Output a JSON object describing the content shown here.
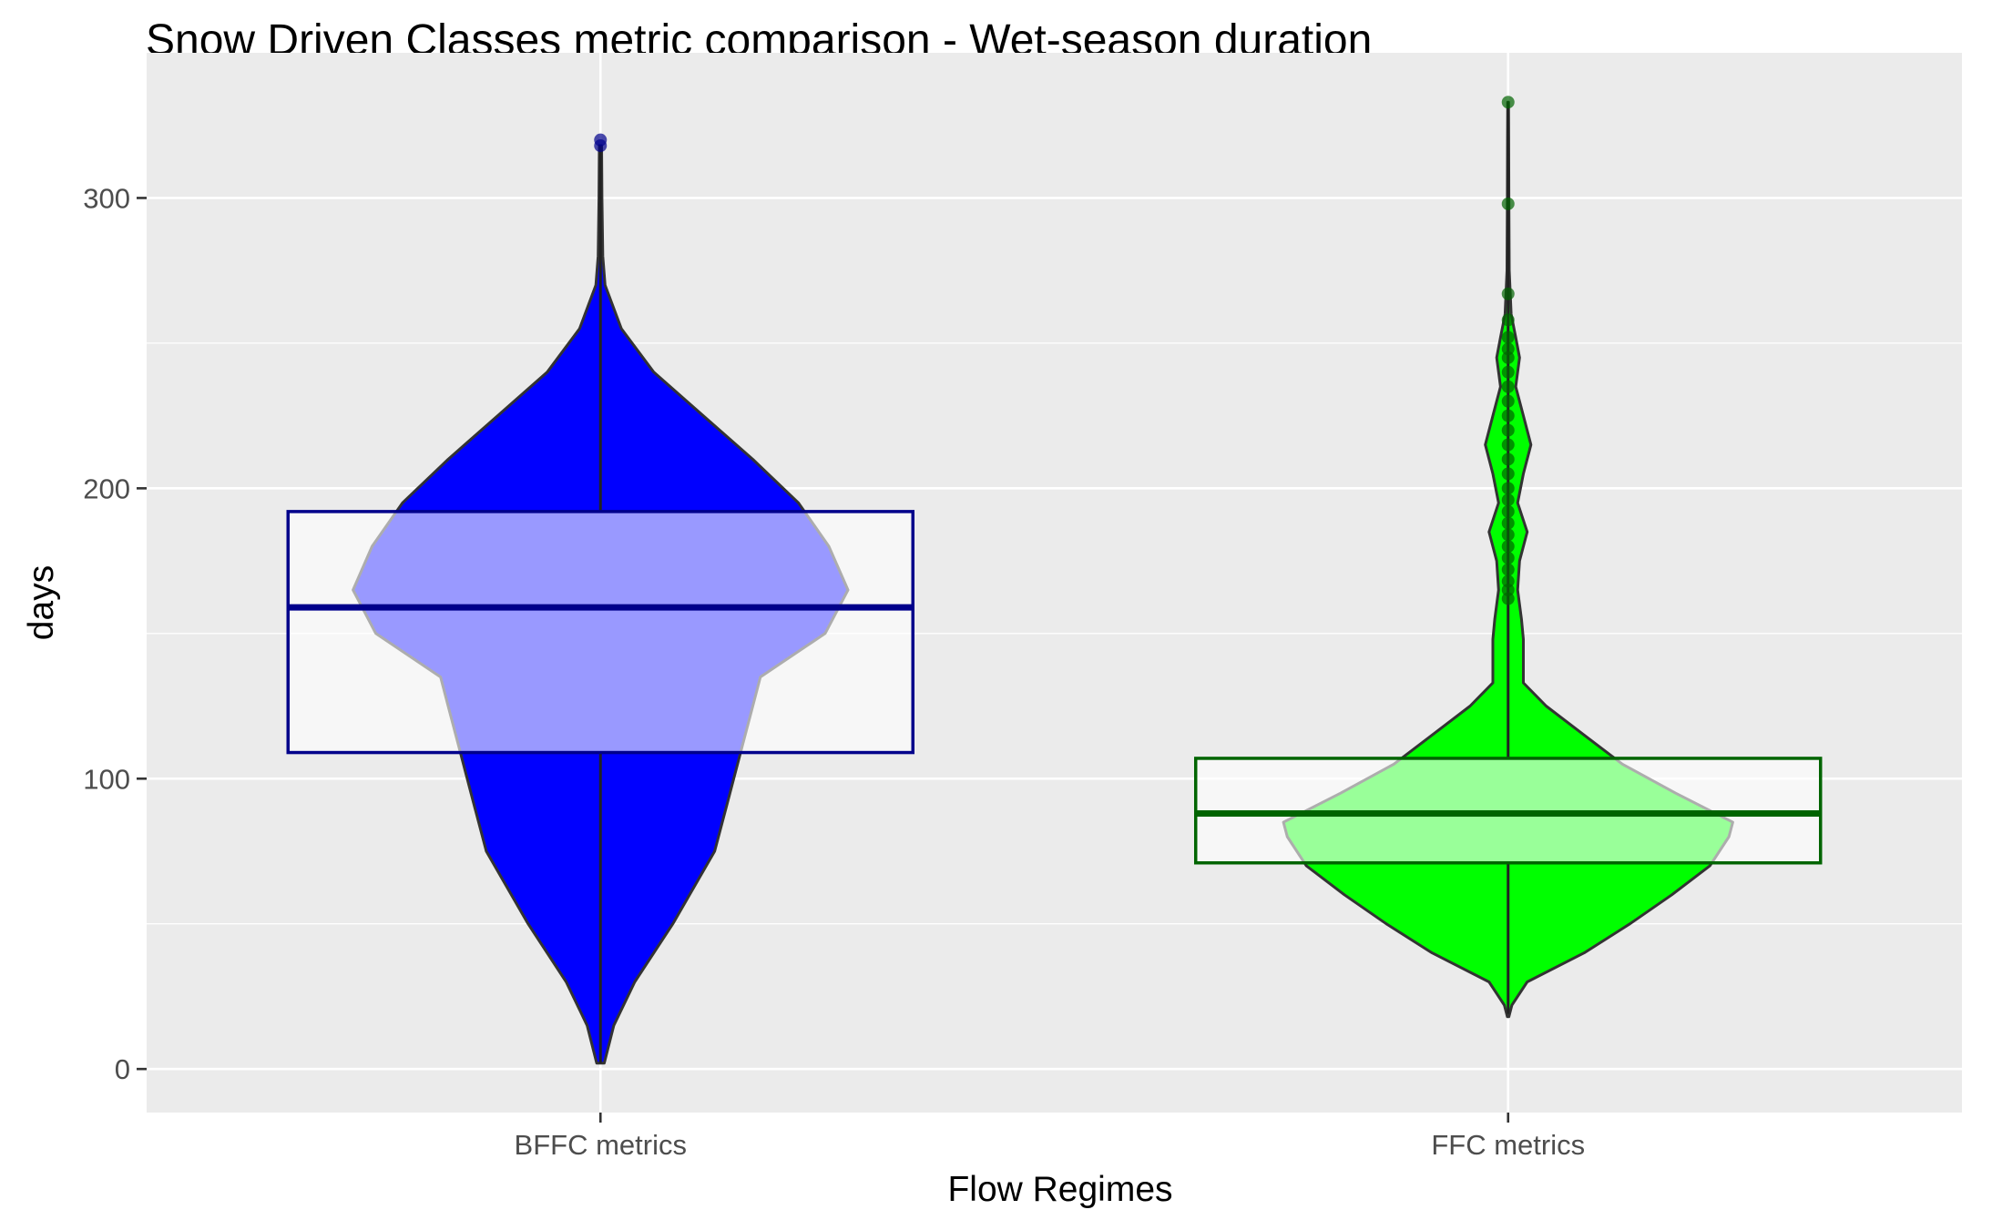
{
  "chart_data": {
    "type": "violin",
    "title": "Snow Driven Classes metric comparison - Wet-season duration",
    "xlabel": "Flow Regimes",
    "ylabel": "days",
    "ylim": [
      -15,
      350
    ],
    "yticks": [
      0,
      100,
      200,
      300
    ],
    "categories": [
      "BFFC metrics",
      "FFC metrics"
    ],
    "colors": {
      "panel_background": "#ebebeb",
      "gridline": "#ffffff",
      "bffc_fill": "#0000ff",
      "bffc_box_border": "#00008b",
      "ffc_fill": "#00ff00",
      "ffc_box_border": "#006400"
    },
    "series": [
      {
        "name": "BFFC metrics",
        "box": {
          "q1": 109,
          "median": 159,
          "q3": 192,
          "whisker_low": 2,
          "whisker_high": 318
        },
        "outliers": [
          318,
          320
        ],
        "density": [
          [
            2,
            0.01
          ],
          [
            15,
            0.035
          ],
          [
            30,
            0.09
          ],
          [
            50,
            0.19
          ],
          [
            75,
            0.3
          ],
          [
            90,
            0.33
          ],
          [
            110,
            0.37
          ],
          [
            125,
            0.4
          ],
          [
            135,
            0.42
          ],
          [
            150,
            0.59
          ],
          [
            165,
            0.65
          ],
          [
            180,
            0.6
          ],
          [
            195,
            0.52
          ],
          [
            210,
            0.4
          ],
          [
            225,
            0.27
          ],
          [
            240,
            0.14
          ],
          [
            255,
            0.055
          ],
          [
            270,
            0.012
          ],
          [
            280,
            0.006
          ],
          [
            300,
            0.004
          ],
          [
            318,
            0.003
          ]
        ]
      },
      {
        "name": "FFC metrics",
        "box": {
          "q1": 71,
          "median": 88,
          "q3": 107,
          "whisker_low": 19,
          "whisker_high": 333
        },
        "outliers": [
          162,
          165,
          168,
          172,
          176,
          180,
          184,
          188,
          192,
          196,
          200,
          205,
          210,
          215,
          220,
          225,
          230,
          235,
          240,
          245,
          248,
          252,
          258,
          267,
          298,
          333
        ],
        "density": [
          [
            18,
            0.002
          ],
          [
            22,
            0.01
          ],
          [
            30,
            0.05
          ],
          [
            40,
            0.2
          ],
          [
            50,
            0.32
          ],
          [
            60,
            0.43
          ],
          [
            70,
            0.53
          ],
          [
            80,
            0.58
          ],
          [
            85,
            0.59
          ],
          [
            95,
            0.44
          ],
          [
            105,
            0.3
          ],
          [
            115,
            0.2
          ],
          [
            125,
            0.1
          ],
          [
            133,
            0.04
          ],
          [
            140,
            0.04
          ],
          [
            148,
            0.04
          ],
          [
            155,
            0.035
          ],
          [
            165,
            0.025
          ],
          [
            175,
            0.03
          ],
          [
            185,
            0.05
          ],
          [
            195,
            0.025
          ],
          [
            205,
            0.04
          ],
          [
            215,
            0.06
          ],
          [
            225,
            0.04
          ],
          [
            235,
            0.02
          ],
          [
            245,
            0.03
          ],
          [
            252,
            0.02
          ],
          [
            260,
            0.008
          ],
          [
            275,
            0.003
          ],
          [
            300,
            0.002
          ],
          [
            320,
            0.0015
          ],
          [
            333,
            0.001
          ]
        ]
      }
    ]
  }
}
